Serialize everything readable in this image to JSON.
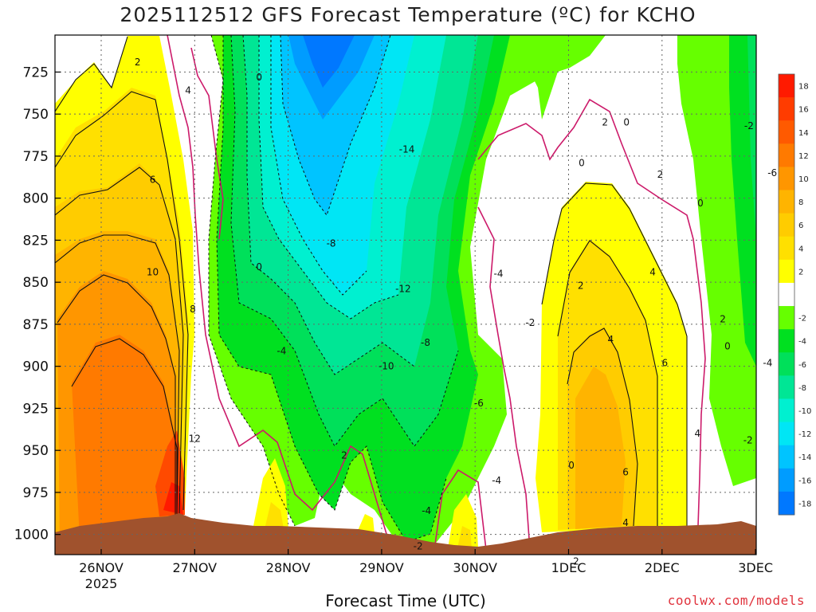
{
  "title": "2025112512 GFS Forecast Temperature (ºC) for KCHO",
  "xlabel": "Forecast Time (UTC)",
  "credit": "coolwx.com/models",
  "chart_data": {
    "type": "heatmap",
    "title": "2025112512 GFS Forecast Temperature (ºC) for KCHO",
    "xlabel": "Forecast Time (UTC)",
    "ylabel": "",
    "y_axis": "pressure (hPa), inverted",
    "ylim": [
      1012,
      703
    ],
    "yticks": [
      725,
      750,
      775,
      800,
      825,
      850,
      875,
      900,
      925,
      950,
      975,
      1000
    ],
    "xticks": [
      "26NOV",
      "27NOV",
      "28NOV",
      "29NOV",
      "30NOV",
      "1DEC",
      "2DEC",
      "3DEC"
    ],
    "xtick_sublabel": "2025",
    "grid": true,
    "colorbar": {
      "position": "right",
      "ticks": [
        18,
        16,
        14,
        12,
        10,
        8,
        6,
        4,
        2,
        -2,
        -4,
        -6,
        -8,
        -10,
        -12,
        -14,
        -16,
        -18
      ],
      "bins": [
        {
          "from": 18,
          "to": 20,
          "color": "#ff1a00"
        },
        {
          "from": 16,
          "to": 18,
          "color": "#ff3c00"
        },
        {
          "from": 14,
          "to": 16,
          "color": "#ff5a00"
        },
        {
          "from": 12,
          "to": 14,
          "color": "#ff7a00"
        },
        {
          "from": 10,
          "to": 12,
          "color": "#ff9600"
        },
        {
          "from": 8,
          "to": 10,
          "color": "#ffb400"
        },
        {
          "from": 6,
          "to": 8,
          "color": "#ffcc00"
        },
        {
          "from": 4,
          "to": 6,
          "color": "#ffe000"
        },
        {
          "from": 2,
          "to": 4,
          "color": "#ffff00"
        },
        {
          "from": -2,
          "to": 2,
          "color": "#ffffff"
        },
        {
          "from": -4,
          "to": -2,
          "color": "#66ff00"
        },
        {
          "from": -6,
          "to": -4,
          "color": "#00e020"
        },
        {
          "from": -8,
          "to": -6,
          "color": "#00e05a"
        },
        {
          "from": -10,
          "to": -8,
          "color": "#00e695"
        },
        {
          "from": -12,
          "to": -10,
          "color": "#00f0d0"
        },
        {
          "from": -14,
          "to": -12,
          "color": "#00e6f5"
        },
        {
          "from": -16,
          "to": -14,
          "color": "#00c4ff"
        },
        {
          "from": -18,
          "to": -16,
          "color": "#009cff"
        },
        {
          "from": -20,
          "to": -18,
          "color": "#0078ff"
        }
      ]
    },
    "contour_labels": [
      {
        "text": "2",
        "t": 0.39,
        "p": 719
      },
      {
        "text": "4",
        "t": 0.93,
        "p": 736
      },
      {
        "text": "6",
        "t": 0.55,
        "p": 789
      },
      {
        "text": "10",
        "t": 0.55,
        "p": 844
      },
      {
        "text": "8",
        "t": 0.98,
        "p": 866
      },
      {
        "text": "12",
        "t": 1.0,
        "p": 943
      },
      {
        "text": "0",
        "t": 1.69,
        "p": 728
      },
      {
        "text": "0",
        "t": 1.69,
        "p": 841
      },
      {
        "text": "-4",
        "t": 1.93,
        "p": 891
      },
      {
        "text": "2",
        "t": 2.6,
        "p": 953
      },
      {
        "text": "-8",
        "t": 2.46,
        "p": 827
      },
      {
        "text": "-14",
        "t": 3.27,
        "p": 771
      },
      {
        "text": "-12",
        "t": 3.23,
        "p": 854
      },
      {
        "text": "-8",
        "t": 3.47,
        "p": 886
      },
      {
        "text": "-10",
        "t": 3.05,
        "p": 900
      },
      {
        "text": "-6",
        "t": 4.04,
        "p": 922
      },
      {
        "text": "-4",
        "t": 3.48,
        "p": 986
      },
      {
        "text": "-2",
        "t": 3.39,
        "p": 1007
      },
      {
        "text": "-4",
        "t": 4.25,
        "p": 845
      },
      {
        "text": "-2",
        "t": 4.59,
        "p": 874
      },
      {
        "text": "-4",
        "t": 4.23,
        "p": 968
      },
      {
        "text": "0",
        "t": 5.14,
        "p": 779
      },
      {
        "text": "2",
        "t": 5.39,
        "p": 755
      },
      {
        "text": "0",
        "t": 5.62,
        "p": 755
      },
      {
        "text": "2",
        "t": 5.98,
        "p": 786
      },
      {
        "text": "0",
        "t": 6.41,
        "p": 803
      },
      {
        "text": "2",
        "t": 5.13,
        "p": 852
      },
      {
        "text": "4",
        "t": 5.45,
        "p": 884
      },
      {
        "text": "4",
        "t": 5.9,
        "p": 844
      },
      {
        "text": "6",
        "t": 6.03,
        "p": 898
      },
      {
        "text": "4",
        "t": 6.38,
        "p": 940
      },
      {
        "text": "2",
        "t": 6.65,
        "p": 872
      },
      {
        "text": "0",
        "t": 6.7,
        "p": 888
      },
      {
        "text": "6",
        "t": 5.61,
        "p": 963
      },
      {
        "text": "4",
        "t": 5.61,
        "p": 993
      },
      {
        "text": "0",
        "t": 5.03,
        "p": 959
      },
      {
        "text": "2",
        "t": 5.08,
        "p": 1016
      },
      {
        "text": "-2",
        "t": 6.93,
        "p": 757
      },
      {
        "text": "-6",
        "t": 7.18,
        "p": 785
      },
      {
        "text": "-4",
        "t": 7.13,
        "p": 898
      },
      {
        "text": "-2",
        "t": 6.92,
        "p": 944
      }
    ]
  }
}
